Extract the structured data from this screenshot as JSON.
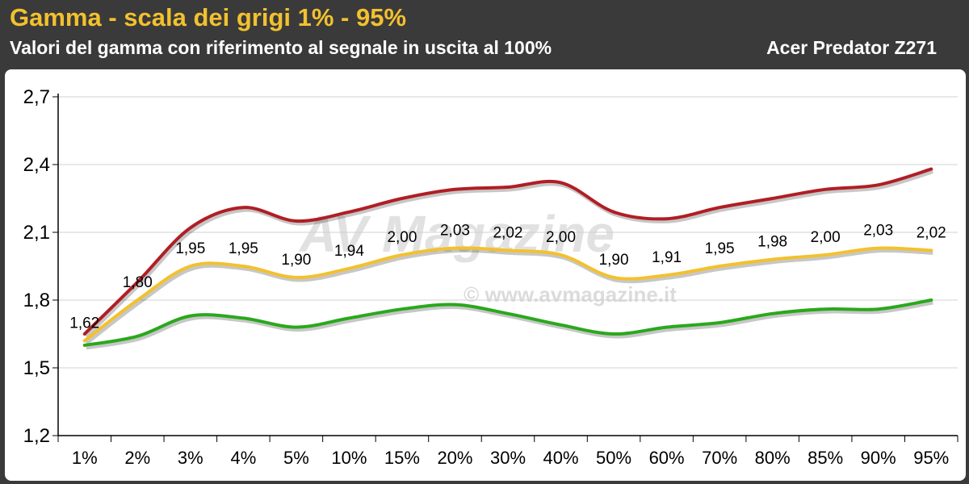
{
  "header": {
    "title": "Gamma - scala dei grigi 1% - 95%",
    "subtitle": "Valori del gamma con riferimento al segnale in uscita al 100%",
    "monitor": "Acer Predator Z271"
  },
  "watermark": {
    "logo": "AV Magazine",
    "copyright": "© www.avmagazine.it"
  },
  "chart_data": {
    "type": "line",
    "categories": [
      "1%",
      "2%",
      "3%",
      "4%",
      "5%",
      "10%",
      "15%",
      "20%",
      "30%",
      "40%",
      "50%",
      "60%",
      "70%",
      "80%",
      "85%",
      "90%",
      "95%"
    ],
    "ylim": [
      1.2,
      2.7
    ],
    "yticks": [
      "1,2",
      "1,5",
      "1,8",
      "2,1",
      "2,4",
      "2,7"
    ],
    "grid": true,
    "series": [
      {
        "color": "#b01e24",
        "values": [
          1.65,
          1.88,
          2.12,
          2.21,
          2.15,
          2.19,
          2.25,
          2.29,
          2.3,
          2.32,
          2.19,
          2.16,
          2.21,
          2.25,
          2.29,
          2.31,
          2.38
        ]
      },
      {
        "color": "#f2c12e",
        "values": [
          1.62,
          1.8,
          1.95,
          1.95,
          1.9,
          1.94,
          2.0,
          2.03,
          2.02,
          2.0,
          1.9,
          1.91,
          1.95,
          1.98,
          2.0,
          2.03,
          2.02
        ],
        "labels": [
          "1,62",
          "1,80",
          "1,95",
          "1,95",
          "1,90",
          "1,94",
          "2,00",
          "2,03",
          "2,02",
          "2,00",
          "1,90",
          "1,91",
          "1,95",
          "1,98",
          "2,00",
          "2,03",
          "2,02"
        ]
      },
      {
        "color": "#2aa81c",
        "values": [
          1.6,
          1.64,
          1.73,
          1.72,
          1.68,
          1.72,
          1.76,
          1.78,
          1.74,
          1.69,
          1.65,
          1.68,
          1.7,
          1.74,
          1.76,
          1.76,
          1.8
        ]
      }
    ]
  }
}
